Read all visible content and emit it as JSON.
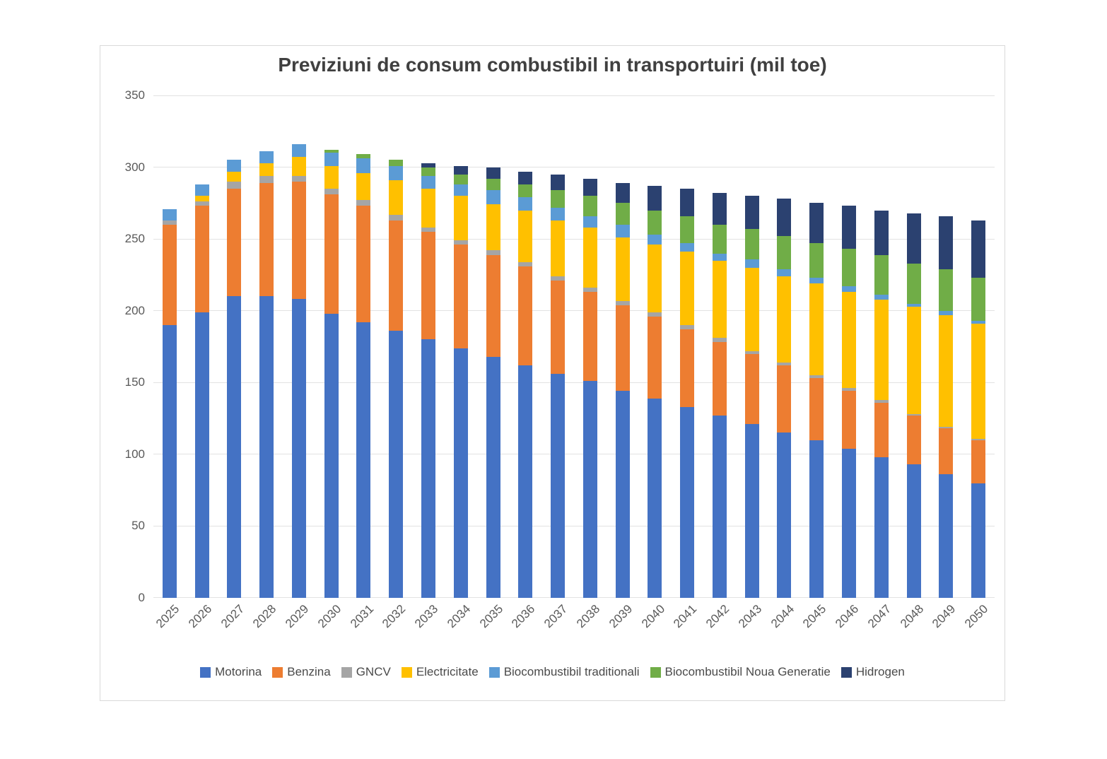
{
  "chart_data": {
    "type": "bar",
    "stacked": true,
    "title": "Previziuni de consum combustibil in transportuiri (mil toe)",
    "categories": [
      "2025",
      "2026",
      "2027",
      "2028",
      "2029",
      "2030",
      "2031",
      "2032",
      "2033",
      "2034",
      "2035",
      "2036",
      "2037",
      "2038",
      "2039",
      "2040",
      "2041",
      "2042",
      "2043",
      "2044",
      "2045",
      "2046",
      "2047",
      "2048",
      "2049",
      "2050"
    ],
    "series": [
      {
        "name": "Motorina",
        "color": "#4472C4",
        "values": [
          190,
          199,
          210,
          210,
          208,
          198,
          192,
          186,
          180,
          174,
          168,
          162,
          156,
          151,
          144,
          139,
          133,
          127,
          121,
          115,
          110,
          104,
          98,
          93,
          86,
          80
        ]
      },
      {
        "name": "Benzina",
        "color": "#ED7D31",
        "values": [
          70,
          74,
          75,
          79,
          82,
          83,
          81,
          77,
          75,
          72,
          71,
          69,
          65,
          62,
          60,
          57,
          54,
          51,
          49,
          47,
          43,
          40,
          38,
          34,
          32,
          30
        ]
      },
      {
        "name": "GNCV",
        "color": "#A5A5A5",
        "values": [
          3,
          3,
          5,
          5,
          4,
          4,
          4,
          4,
          3,
          3,
          3,
          3,
          3,
          3,
          3,
          3,
          3,
          3,
          2,
          2,
          2,
          2,
          2,
          1,
          1,
          1
        ]
      },
      {
        "name": "Electricitate",
        "color": "#FFC000",
        "values": [
          0,
          4,
          7,
          9,
          13,
          16,
          19,
          24,
          27,
          31,
          32,
          36,
          39,
          42,
          44,
          47,
          51,
          54,
          58,
          60,
          64,
          67,
          70,
          75,
          78,
          80
        ]
      },
      {
        "name": "Biocombustibil traditionali",
        "color": "#5B9BD5",
        "values": [
          8,
          8,
          8,
          8,
          9,
          9,
          10,
          10,
          9,
          8,
          10,
          9,
          9,
          8,
          9,
          7,
          6,
          5,
          6,
          5,
          4,
          4,
          3,
          2,
          3,
          2
        ]
      },
      {
        "name": "Biocombustibil Noua Generatie",
        "color": "#70AD47",
        "values": [
          0,
          0,
          0,
          0,
          0,
          2,
          3,
          4,
          6,
          7,
          8,
          9,
          12,
          14,
          15,
          17,
          19,
          20,
          21,
          23,
          24,
          26,
          28,
          28,
          29,
          30
        ]
      },
      {
        "name": "Hidrogen",
        "color": "#2B4170",
        "values": [
          0,
          0,
          0,
          0,
          0,
          0,
          0,
          0,
          3,
          6,
          8,
          9,
          11,
          12,
          14,
          17,
          19,
          22,
          23,
          26,
          28,
          30,
          31,
          35,
          37,
          40
        ]
      }
    ],
    "totals": [
      271,
      288,
      305,
      311,
      316,
      312,
      309,
      305,
      303,
      301,
      300,
      297,
      295,
      292,
      289,
      287,
      285,
      282,
      280,
      278,
      275,
      273,
      270,
      268,
      266,
      263
    ],
    "ylim": [
      0,
      350
    ],
    "yticks": [
      0,
      50,
      100,
      150,
      200,
      250,
      300,
      350
    ],
    "grid": true,
    "legend_position": "bottom"
  },
  "style": {
    "gridline_color": "#E2E2E2",
    "border_color": "#D9D9D9",
    "axis_text_color": "#595959",
    "title_color": "#404040"
  }
}
